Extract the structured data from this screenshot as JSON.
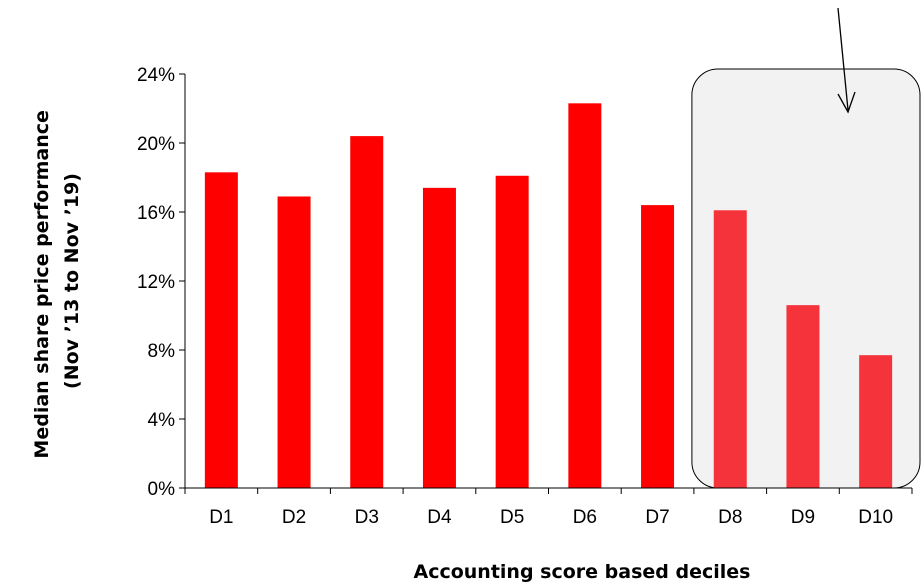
{
  "chart_data": {
    "type": "bar",
    "title": "",
    "xlabel": "Accounting score based deciles",
    "ylabel": [
      "Median share price performance",
      "(Nov ’13 to Nov ’19)"
    ],
    "categories": [
      "D1",
      "D2",
      "D3",
      "D4",
      "D5",
      "D6",
      "D7",
      "D8",
      "D9",
      "D10"
    ],
    "values": [
      18.3,
      16.9,
      20.4,
      17.4,
      18.1,
      22.3,
      16.4,
      16.1,
      10.6,
      7.7
    ],
    "ylim": [
      0,
      24
    ],
    "yticks": [
      0,
      4,
      8,
      12,
      16,
      20,
      24
    ],
    "ytick_format": "{v}%",
    "grid": false,
    "legend": "none",
    "colors": {
      "bar": "#ff0000",
      "bar_highlighted": "#f5333a",
      "highlight_fill": "#f2f2f2",
      "highlight_stroke": "#000000",
      "axis": "#000000"
    },
    "highlight": {
      "categories": [
        "D8",
        "D9",
        "D10"
      ],
      "shape": "rounded-box-with-arrow"
    }
  }
}
